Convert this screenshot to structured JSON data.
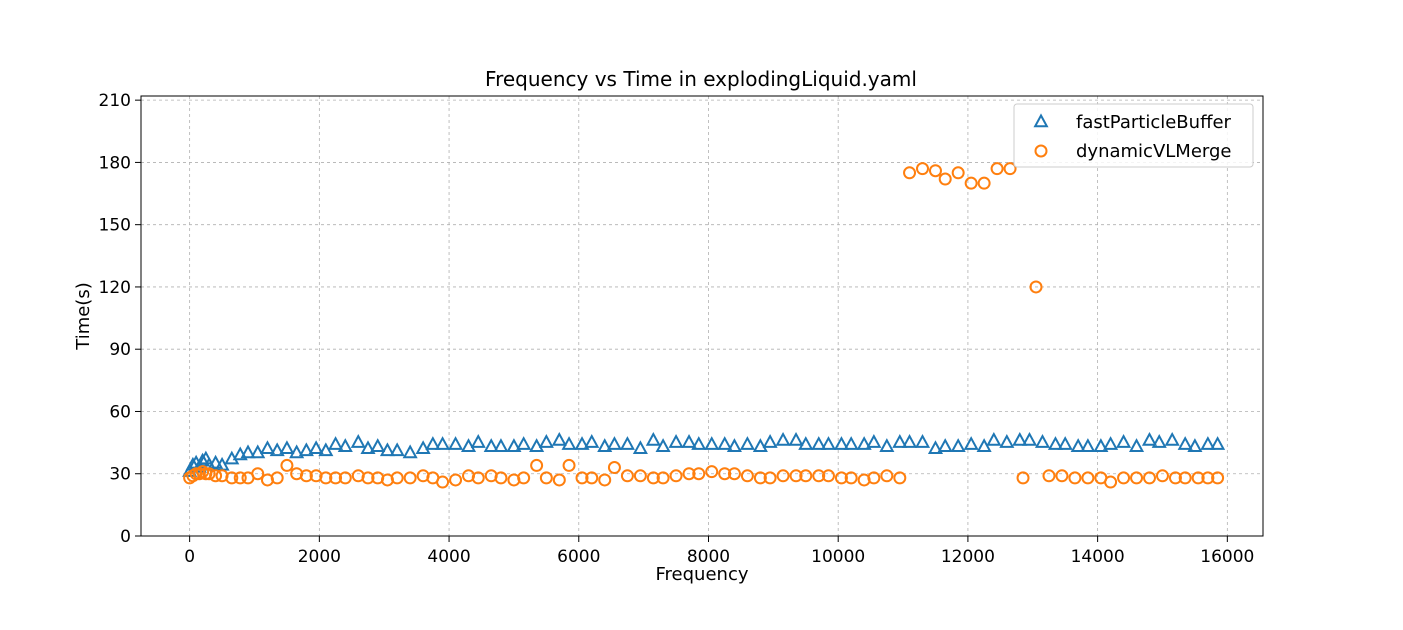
{
  "chart_data": {
    "type": "scatter",
    "title": "Frequency vs Time in explodingLiquid.yaml",
    "xlabel": "Frequency",
    "ylabel": "Time(s)",
    "xlim": [
      -750,
      16550
    ],
    "ylim": [
      0,
      212
    ],
    "xticks": [
      0,
      2000,
      4000,
      6000,
      8000,
      10000,
      12000,
      14000,
      16000
    ],
    "yticks": [
      0,
      30,
      60,
      90,
      120,
      150,
      180,
      210
    ],
    "grid": true,
    "legend_position": "top-right",
    "series": [
      {
        "name": "fastParticleBuffer",
        "marker": "triangle",
        "color": "#1f77b4",
        "x": [
          0,
          50,
          100,
          150,
          200,
          250,
          300,
          400,
          500,
          650,
          780,
          900,
          1050,
          1200,
          1350,
          1500,
          1650,
          1800,
          1950,
          2100,
          2250,
          2400,
          2600,
          2750,
          2900,
          3050,
          3200,
          3400,
          3600,
          3750,
          3900,
          4100,
          4300,
          4450,
          4650,
          4800,
          5000,
          5150,
          5350,
          5500,
          5700,
          5850,
          6050,
          6200,
          6400,
          6550,
          6750,
          6950,
          7150,
          7300,
          7500,
          7700,
          7850,
          8050,
          8250,
          8400,
          8600,
          8800,
          8950,
          9150,
          9350,
          9500,
          9700,
          9850,
          10050,
          10200,
          10400,
          10550,
          10750,
          10950,
          11100,
          11300,
          11500,
          11650,
          11850,
          12050,
          12250,
          12400,
          12600,
          12800,
          12950,
          13150,
          13350,
          13500,
          13700,
          13850,
          14050,
          14200,
          14400,
          14600,
          14800,
          14950,
          15150,
          15350,
          15500,
          15700,
          15850
        ],
        "y": [
          31,
          34,
          35,
          33,
          36,
          37,
          34,
          35,
          34,
          37,
          39,
          40,
          40,
          42,
          41,
          42,
          40,
          41,
          42,
          41,
          44,
          43,
          45,
          42,
          43,
          41,
          41,
          40,
          42,
          44,
          44,
          44,
          43,
          45,
          43,
          43,
          43,
          44,
          43,
          45,
          46,
          44,
          44,
          45,
          43,
          44,
          44,
          42,
          46,
          43,
          45,
          45,
          44,
          44,
          44,
          43,
          44,
          43,
          45,
          46,
          46,
          44,
          44,
          44,
          44,
          44,
          44,
          45,
          43,
          45,
          45,
          45,
          42,
          43,
          43,
          44,
          43,
          46,
          45,
          46,
          46,
          45,
          44,
          44,
          43,
          43,
          43,
          44,
          45,
          43,
          46,
          45,
          46,
          44,
          43,
          44,
          44
        ]
      },
      {
        "name": "dynamicVLMerge",
        "marker": "circle",
        "color": "#ff7f0e",
        "x": [
          0,
          50,
          100,
          150,
          200,
          250,
          300,
          400,
          500,
          650,
          780,
          900,
          1050,
          1200,
          1350,
          1500,
          1650,
          1800,
          1950,
          2100,
          2250,
          2400,
          2600,
          2750,
          2900,
          3050,
          3200,
          3400,
          3600,
          3750,
          3900,
          4100,
          4300,
          4450,
          4650,
          4800,
          5000,
          5150,
          5350,
          5500,
          5700,
          5850,
          6050,
          6200,
          6400,
          6550,
          6750,
          6950,
          7150,
          7300,
          7500,
          7700,
          7850,
          8050,
          8250,
          8400,
          8600,
          8800,
          8950,
          9150,
          9350,
          9500,
          9700,
          9850,
          10050,
          10200,
          10400,
          10550,
          10750,
          10950,
          11100,
          11300,
          11500,
          11650,
          11850,
          12050,
          12250,
          12450,
          12650,
          12850,
          13050,
          13250,
          13450,
          13650,
          13850,
          14050,
          14200,
          14400,
          14600,
          14800,
          15000,
          15200,
          15350,
          15550,
          15700,
          15850
        ],
        "y": [
          28,
          29,
          30,
          30,
          31,
          30,
          30,
          29,
          29,
          28,
          28,
          28,
          30,
          27,
          28,
          34,
          30,
          29,
          29,
          28,
          28,
          28,
          29,
          28,
          28,
          27,
          28,
          28,
          29,
          28,
          26,
          27,
          29,
          28,
          29,
          28,
          27,
          28,
          34,
          28,
          27,
          34,
          28,
          28,
          27,
          33,
          29,
          29,
          28,
          28,
          29,
          30,
          30,
          31,
          30,
          30,
          29,
          28,
          28,
          29,
          29,
          29,
          29,
          29,
          28,
          28,
          27,
          28,
          29,
          28,
          175,
          177,
          176,
          172,
          175,
          170,
          170,
          177,
          177,
          28,
          120,
          29,
          29,
          28,
          28,
          28,
          26,
          28,
          28,
          28,
          29,
          28,
          28,
          28,
          28,
          28
        ]
      }
    ]
  }
}
